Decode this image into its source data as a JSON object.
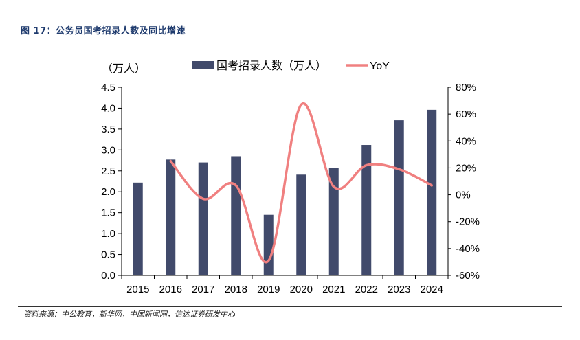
{
  "figure": {
    "title": "图 17：公务员国考招录人数及同比增速",
    "source": "资料来源：中公教育，新华网，中国新闻网，信达证券研发中心"
  },
  "colors": {
    "bar": "#414a6b",
    "line": "#f08080",
    "title": "#1f3b6e"
  },
  "chart_data": {
    "type": "bar+line",
    "title": "",
    "categories": [
      "2015",
      "2016",
      "2017",
      "2018",
      "2019",
      "2020",
      "2021",
      "2022",
      "2023",
      "2024"
    ],
    "series": [
      {
        "name": "国考招录人数（万人）",
        "type": "bar",
        "axis": "left",
        "values": [
          2.22,
          2.77,
          2.7,
          2.85,
          1.45,
          2.41,
          2.57,
          3.12,
          3.71,
          3.96
        ]
      },
      {
        "name": "YoY",
        "type": "line",
        "axis": "right",
        "smooth": true,
        "values": [
          null,
          25,
          -3,
          7,
          -49,
          67,
          6,
          22,
          19,
          7
        ]
      }
    ],
    "y_left": {
      "label": "（万人）",
      "ylim": [
        0,
        4.5
      ],
      "ticks": [
        "0.0",
        "0.5",
        "1.0",
        "1.5",
        "2.0",
        "2.5",
        "3.0",
        "3.5",
        "4.0",
        "4.5"
      ]
    },
    "y_right": {
      "ylim": [
        -60,
        80
      ],
      "ticks": [
        "-60%",
        "-40%",
        "-20%",
        "0%",
        "20%",
        "40%",
        "60%",
        "80%"
      ]
    },
    "grid": false,
    "legend_placement": "top"
  }
}
